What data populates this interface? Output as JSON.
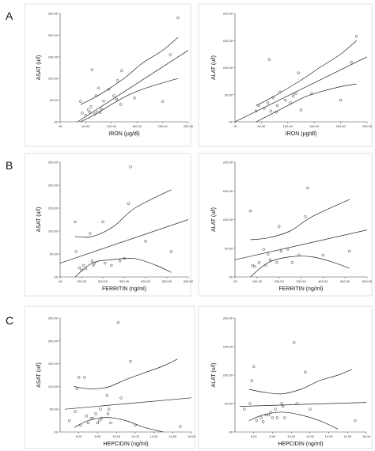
{
  "panel_labels": [
    "A",
    "B",
    "C"
  ],
  "chart_data": [
    {
      "type": "scatter",
      "xlabel": "IRON (µg/dl)",
      "ylabel": "ASAT (u/l)",
      "xlim": [
        0,
        250
      ],
      "ylim": [
        0,
        250
      ],
      "xticks": [
        ".00",
        "50.00",
        "100.00",
        "150.00",
        "200.00",
        "250.00"
      ],
      "yticks": [
        ".00",
        "50.00",
        "100.00",
        "150.00",
        "200.00",
        "250.00"
      ],
      "points": [
        [
          40,
          47
        ],
        [
          43,
          20
        ],
        [
          50,
          15
        ],
        [
          55,
          28
        ],
        [
          58,
          22
        ],
        [
          60,
          35
        ],
        [
          62,
          120
        ],
        [
          67,
          18
        ],
        [
          70,
          60
        ],
        [
          72,
          22
        ],
        [
          75,
          78
        ],
        [
          78,
          22
        ],
        [
          80,
          30
        ],
        [
          85,
          48
        ],
        [
          95,
          75
        ],
        [
          105,
          60
        ],
        [
          110,
          52
        ],
        [
          112,
          95
        ],
        [
          118,
          40
        ],
        [
          120,
          118
        ],
        [
          145,
          55
        ],
        [
          200,
          47
        ],
        [
          215,
          155
        ],
        [
          230,
          240
        ]
      ],
      "fit": [
        [
          34,
          0
        ],
        [
          250,
          165
        ]
      ],
      "ci_upper": [
        [
          40,
          40
        ],
        [
          70,
          58
        ],
        [
          100,
          80
        ],
        [
          130,
          105
        ],
        [
          160,
          135
        ],
        [
          200,
          165
        ],
        [
          230,
          195
        ]
      ],
      "ci_lower": [
        [
          40,
          0
        ],
        [
          70,
          18
        ],
        [
          100,
          40
        ],
        [
          130,
          60
        ],
        [
          160,
          75
        ],
        [
          200,
          90
        ],
        [
          230,
          100
        ]
      ]
    },
    {
      "type": "scatter",
      "xlabel": "IRON (µg/dl)",
      "ylabel": "ALAT (u/l)",
      "xlim": [
        0,
        250
      ],
      "ylim": [
        0,
        200
      ],
      "xticks": [
        ".00",
        "50.00",
        "100.00",
        "150.00",
        "200.00",
        "250.00"
      ],
      "yticks": [
        ".00",
        "50.00",
        "100.00",
        "150.00",
        "200.00"
      ],
      "points": [
        [
          40,
          20
        ],
        [
          45,
          30
        ],
        [
          55,
          25
        ],
        [
          62,
          35
        ],
        [
          65,
          115
        ],
        [
          68,
          20
        ],
        [
          72,
          45
        ],
        [
          78,
          18
        ],
        [
          80,
          30
        ],
        [
          85,
          55
        ],
        [
          95,
          40
        ],
        [
          105,
          35
        ],
        [
          110,
          48
        ],
        [
          115,
          52
        ],
        [
          120,
          90
        ],
        [
          125,
          22
        ],
        [
          145,
          52
        ],
        [
          200,
          40
        ],
        [
          220,
          110
        ],
        [
          230,
          158
        ]
      ],
      "fit": [
        [
          0,
          0
        ],
        [
          250,
          120
        ]
      ],
      "ci_upper": [
        [
          40,
          30
        ],
        [
          70,
          45
        ],
        [
          100,
          62
        ],
        [
          130,
          80
        ],
        [
          160,
          100
        ],
        [
          200,
          125
        ],
        [
          230,
          150
        ]
      ],
      "ci_lower": [
        [
          40,
          0
        ],
        [
          70,
          15
        ],
        [
          100,
          30
        ],
        [
          130,
          45
        ],
        [
          160,
          55
        ],
        [
          200,
          65
        ],
        [
          230,
          70
        ]
      ]
    },
    {
      "type": "scatter",
      "xlabel": "FERRITIN (ng/ml)",
      "ylabel": "ASAT (u/l)",
      "xlim": [
        0,
        600
      ],
      "ylim": [
        0,
        250
      ],
      "xticks": [
        ".00",
        "100.00",
        "200.00",
        "300.00",
        "400.00",
        "500.00",
        "600.00"
      ],
      "yticks": [
        ".00",
        "50.00",
        "100.00",
        "150.00",
        "200.00",
        "250.00"
      ],
      "points": [
        [
          70,
          120
        ],
        [
          75,
          55
        ],
        [
          90,
          20
        ],
        [
          100,
          15
        ],
        [
          110,
          25
        ],
        [
          120,
          18
        ],
        [
          140,
          95
        ],
        [
          150,
          35
        ],
        [
          155,
          25
        ],
        [
          160,
          30
        ],
        [
          200,
          120
        ],
        [
          210,
          30
        ],
        [
          240,
          25
        ],
        [
          280,
          35
        ],
        [
          300,
          40
        ],
        [
          320,
          160
        ],
        [
          330,
          240
        ],
        [
          400,
          78
        ],
        [
          520,
          55
        ]
      ],
      "fit": [
        [
          0,
          30
        ],
        [
          600,
          125
        ]
      ],
      "ci_upper": [
        [
          70,
          88
        ],
        [
          150,
          88
        ],
        [
          250,
          110
        ],
        [
          350,
          150
        ],
        [
          520,
          190
        ]
      ],
      "ci_lower": [
        [
          70,
          0
        ],
        [
          150,
          30
        ],
        [
          250,
          38
        ],
        [
          350,
          40
        ],
        [
          450,
          25
        ],
        [
          520,
          10
        ]
      ]
    },
    {
      "type": "scatter",
      "xlabel": "FERRITIN (ng/ml)",
      "ylabel": "ALAT (u/l)",
      "xlim": [
        0,
        600
      ],
      "ylim": [
        0,
        200
      ],
      "xticks": [
        ".00",
        "100.00",
        "200.00",
        "300.00",
        "400.00",
        "500.00",
        "600.00"
      ],
      "yticks": [
        ".00",
        "50.00",
        "100.00",
        "150.00",
        "200.00"
      ],
      "points": [
        [
          70,
          115
        ],
        [
          80,
          20
        ],
        [
          90,
          18
        ],
        [
          110,
          25
        ],
        [
          130,
          48
        ],
        [
          140,
          20
        ],
        [
          150,
          40
        ],
        [
          160,
          30
        ],
        [
          190,
          25
        ],
        [
          200,
          88
        ],
        [
          210,
          45
        ],
        [
          240,
          48
        ],
        [
          260,
          25
        ],
        [
          290,
          38
        ],
        [
          320,
          105
        ],
        [
          330,
          155
        ],
        [
          400,
          38
        ],
        [
          520,
          45
        ]
      ],
      "fit": [
        [
          0,
          30
        ],
        [
          600,
          82
        ]
      ],
      "ci_upper": [
        [
          70,
          65
        ],
        [
          150,
          68
        ],
        [
          250,
          80
        ],
        [
          350,
          105
        ],
        [
          520,
          135
        ]
      ],
      "ci_lower": [
        [
          70,
          0
        ],
        [
          150,
          25
        ],
        [
          250,
          35
        ],
        [
          350,
          35
        ],
        [
          450,
          25
        ],
        [
          520,
          15
        ]
      ]
    },
    {
      "type": "scatter",
      "xlabel": "HEPCIDIN (ng/ml)",
      "ylabel": "ASAT (u/l)",
      "xlim": [
        4,
        18
      ],
      "ylim": [
        0,
        250
      ],
      "xticks": [
        "6.00",
        "8.00",
        "10.00",
        "12.00",
        "14.00",
        "16.00",
        "18.00"
      ],
      "yticks": [
        ".00",
        "50.00",
        "100.00",
        "150.00",
        "200.00",
        "250.00"
      ],
      "points": [
        [
          5.0,
          25
        ],
        [
          5.6,
          45
        ],
        [
          5.8,
          95
        ],
        [
          6.0,
          120
        ],
        [
          6.2,
          15
        ],
        [
          6.6,
          120
        ],
        [
          6.8,
          35
        ],
        [
          7.0,
          20
        ],
        [
          7.3,
          30
        ],
        [
          7.5,
          30
        ],
        [
          7.8,
          40
        ],
        [
          8.0,
          20
        ],
        [
          8.2,
          25
        ],
        [
          8.3,
          50
        ],
        [
          8.4,
          30
        ],
        [
          9.0,
          80
        ],
        [
          9.1,
          40
        ],
        [
          9.2,
          50
        ],
        [
          9.4,
          20
        ],
        [
          10.2,
          240
        ],
        [
          10.5,
          75
        ],
        [
          11.5,
          155
        ],
        [
          12.0,
          15
        ],
        [
          16.8,
          12
        ]
      ],
      "fit": [
        [
          4.5,
          50
        ],
        [
          18,
          75
        ]
      ],
      "ci_upper": [
        [
          5.5,
          100
        ],
        [
          7,
          95
        ],
        [
          9,
          98
        ],
        [
          11,
          115
        ],
        [
          13,
          130
        ],
        [
          15,
          145
        ],
        [
          16.5,
          160
        ]
      ],
      "ci_lower": [
        [
          5.5,
          10
        ],
        [
          7,
          25
        ],
        [
          9,
          32
        ],
        [
          11,
          25
        ],
        [
          13,
          10
        ],
        [
          15,
          0
        ]
      ]
    },
    {
      "type": "scatter",
      "xlabel": "HEPCIDIN (ng/ml)",
      "ylabel": "ALAT (u/l)",
      "xlim": [
        4,
        18
      ],
      "ylim": [
        0,
        200
      ],
      "xticks": [
        "6.00",
        "8.00",
        "10.00",
        "12.00",
        "14.00",
        "16.00",
        "18.00"
      ],
      "yticks": [
        ".00",
        "50.00",
        "100.00",
        "150.00",
        "200.00"
      ],
      "points": [
        [
          5.0,
          40
        ],
        [
          5.6,
          50
        ],
        [
          5.8,
          90
        ],
        [
          6.0,
          115
        ],
        [
          6.3,
          20
        ],
        [
          6.8,
          25
        ],
        [
          7.0,
          18
        ],
        [
          7.3,
          30
        ],
        [
          7.6,
          30
        ],
        [
          7.8,
          35
        ],
        [
          8.0,
          25
        ],
        [
          8.3,
          40
        ],
        [
          8.5,
          25
        ],
        [
          9.0,
          50
        ],
        [
          9.1,
          45
        ],
        [
          9.3,
          25
        ],
        [
          10.3,
          157
        ],
        [
          10.6,
          50
        ],
        [
          11.5,
          105
        ],
        [
          12.0,
          40
        ],
        [
          16.8,
          20
        ]
      ],
      "fit": [
        [
          4.5,
          45
        ],
        [
          18,
          52
        ]
      ],
      "ci_upper": [
        [
          5.5,
          75
        ],
        [
          7,
          70
        ],
        [
          9,
          67
        ],
        [
          11,
          75
        ],
        [
          13,
          90
        ],
        [
          15,
          100
        ],
        [
          16.5,
          110
        ]
      ],
      "ci_lower": [
        [
          5.5,
          20
        ],
        [
          7,
          30
        ],
        [
          9,
          35
        ],
        [
          11,
          30
        ],
        [
          13,
          20
        ],
        [
          15,
          5
        ]
      ]
    }
  ]
}
